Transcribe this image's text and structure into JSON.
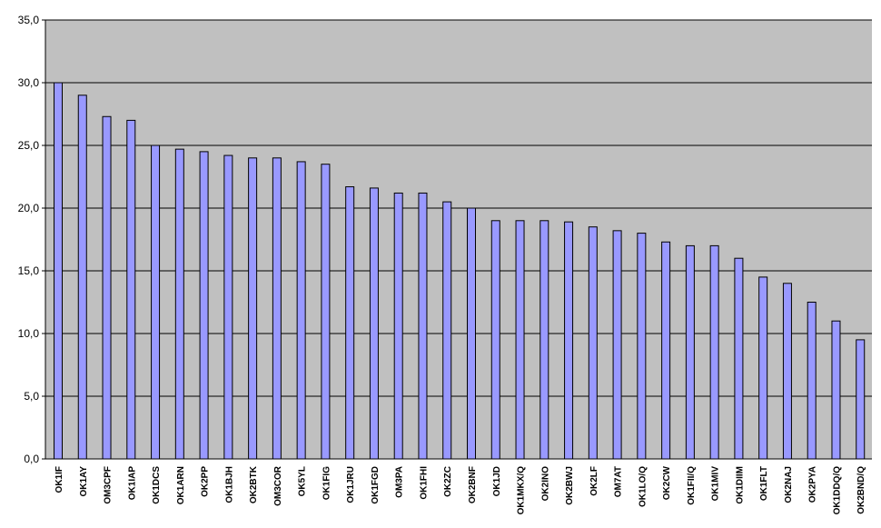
{
  "chart_data": {
    "type": "bar",
    "categories": [
      "OK1IF",
      "OK1AY",
      "OM3CPF",
      "OK1IAP",
      "OK1DCS",
      "OK1ARN",
      "OK2PP",
      "OK1BJH",
      "OK2BTK",
      "OM3COR",
      "OK5YL",
      "OK1FIG",
      "OK1JRU",
      "OK1FGD",
      "OM3PA",
      "OK1FHI",
      "OK2ZC",
      "OK2BNF",
      "OK1JD",
      "OK1MKX/Q",
      "OK2INO",
      "OK2BWJ",
      "OK2LF",
      "OM7AT",
      "OK1LO/Q",
      "OK2CW",
      "OK1FII/Q",
      "OK1MIV",
      "OK1DIIM",
      "OK1FLT",
      "OK2NAJ",
      "OK2PYA",
      "OK1DDQ/Q",
      "OK2BND/Q"
    ],
    "values": [
      30.0,
      29.0,
      27.3,
      27.0,
      25.0,
      24.7,
      24.5,
      24.2,
      24.0,
      24.0,
      23.7,
      23.5,
      21.7,
      21.6,
      21.2,
      21.2,
      20.5,
      20.0,
      19.0,
      19.0,
      19.0,
      18.9,
      18.5,
      18.2,
      18.0,
      17.3,
      17.0,
      17.0,
      16.0,
      14.5,
      14.0,
      12.5,
      11.0,
      9.5
    ],
    "ylim": [
      0,
      35
    ],
    "yticks": [
      "0,0",
      "5,0",
      "10,0",
      "15,0",
      "20,0",
      "25,0",
      "30,0",
      "35,0"
    ],
    "grid": true,
    "legend": "none",
    "colors": {
      "bar_fill": "#9999ff",
      "bar_stroke": "#000000",
      "plot_bg": "#c0c0c0",
      "gridline": "#000000"
    }
  }
}
